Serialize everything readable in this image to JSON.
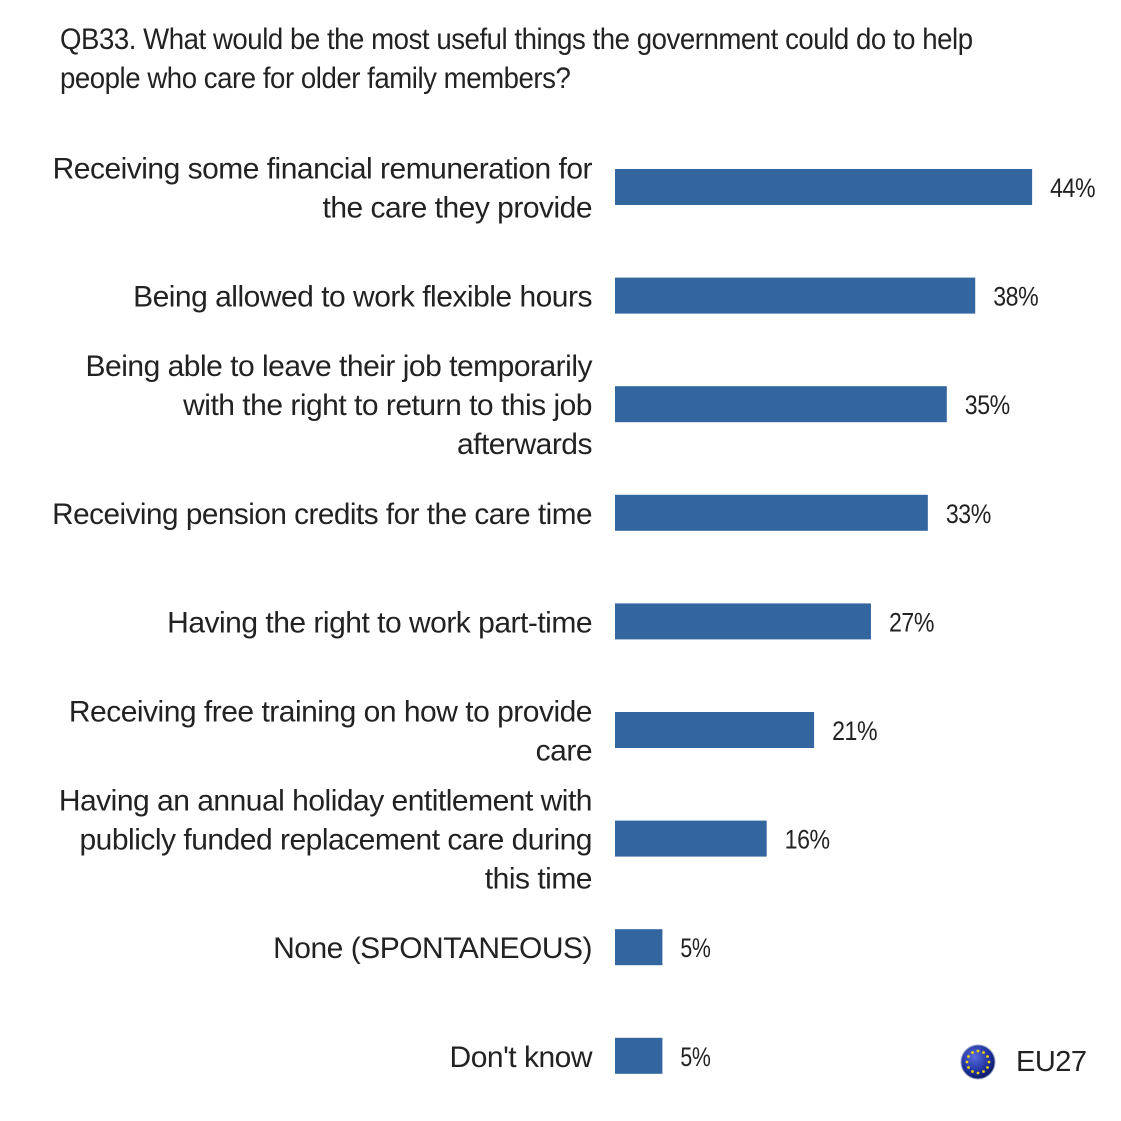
{
  "chart_data": {
    "type": "bar",
    "orientation": "horizontal",
    "title": "QB33. What would be the most useful things the government could do to help\npeople who care for older family members?",
    "categories": [
      "Receiving some financial remuneration for\nthe care they provide",
      "Being allowed to work flexible hours",
      "Being able to leave their job temporarily\nwith the right to return to this job\nafterwards",
      "Receiving pension credits for the care time",
      "Having the right to work part-time",
      "Receiving free training on how to provide\ncare",
      "Having an annual holiday entitlement with\npublicly funded replacement care during\nthis time",
      "None (SPONTANEOUS)",
      "Don't know"
    ],
    "series": [
      {
        "name": "EU27",
        "values": [
          44,
          38,
          35,
          33,
          27,
          21,
          16,
          5,
          5
        ],
        "labels": [
          "44%",
          "38%",
          "35%",
          "33%",
          "27%",
          "21%",
          "16%",
          "5%",
          "5%"
        ]
      }
    ],
    "bar_color": "#33669f",
    "grid": false,
    "legend_position": "bottom-right",
    "legend_icon": "eu-flag-icon"
  },
  "legend": {
    "label": "EU27"
  }
}
